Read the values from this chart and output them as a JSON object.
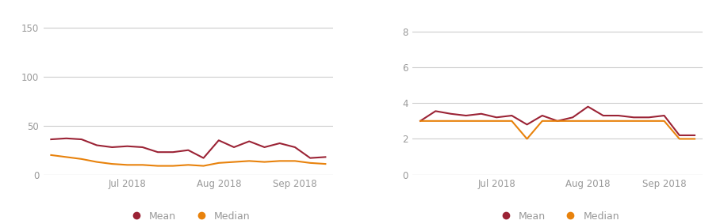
{
  "chart1": {
    "mean": [
      36,
      37,
      36,
      30,
      28,
      29,
      28,
      23,
      23,
      25,
      17,
      35,
      28,
      34,
      28,
      32,
      28,
      17,
      18
    ],
    "median": [
      20,
      18,
      16,
      13,
      11,
      10,
      10,
      9,
      9,
      10,
      9,
      12,
      13,
      14,
      13,
      14,
      14,
      12,
      11
    ],
    "ylim": [
      0,
      155
    ],
    "yticks": [
      0,
      50,
      100,
      150
    ],
    "n_points": 19
  },
  "chart2": {
    "mean": [
      3.0,
      3.55,
      3.4,
      3.3,
      3.4,
      3.2,
      3.3,
      2.8,
      3.3,
      3.0,
      3.2,
      3.8,
      3.3,
      3.3,
      3.2,
      3.2,
      3.3,
      2.2,
      2.2
    ],
    "median": [
      3.0,
      3.0,
      3.0,
      3.0,
      3.0,
      3.0,
      3.0,
      2.0,
      3.0,
      3.0,
      3.0,
      3.0,
      3.0,
      3.0,
      3.0,
      3.0,
      3.0,
      2.0,
      2.0
    ],
    "ylim": [
      0,
      8.5
    ],
    "yticks": [
      0,
      2,
      4,
      6,
      8
    ],
    "n_points": 19
  },
  "mean_color": "#9B2335",
  "median_color": "#E8820C",
  "grid_color": "#cccccc",
  "tick_color": "#999999",
  "bg_color": "#ffffff",
  "line_width": 1.5,
  "x_tick_positions": [
    5,
    11,
    16
  ],
  "x_tick_labels": [
    "Jul 2018",
    "Aug 2018",
    "Sep 2018"
  ],
  "legend_mean": "Mean",
  "legend_median": "Median",
  "legend_dot_size": 7,
  "font_size_tick": 8.5,
  "font_size_legend": 9
}
